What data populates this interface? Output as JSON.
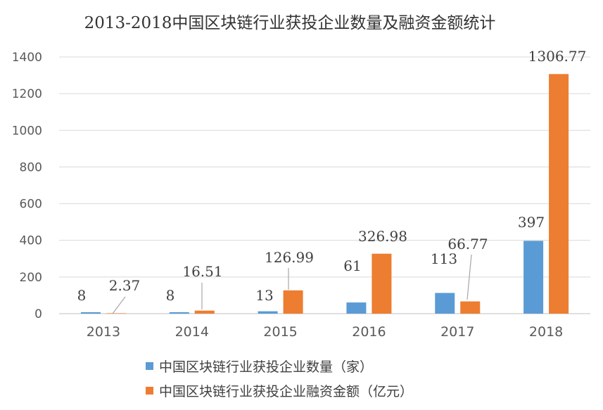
{
  "chart_data": {
    "type": "bar",
    "title": "2013-2018中国区块链行业获投企业数量及融资金额统计",
    "xlabel": "",
    "ylabel": "",
    "ylim": [
      0,
      1400
    ],
    "yticks": [
      "0",
      "200",
      "400",
      "600",
      "800",
      "1000",
      "1200",
      "1400"
    ],
    "categories": [
      "2013",
      "2014",
      "2015",
      "2016",
      "2017",
      "2018"
    ],
    "grid": true,
    "legend_position": "bottom",
    "series": [
      {
        "name": "中国区块链行业获投企业数量（家）",
        "color": "#5b9bd5",
        "values": [
          8,
          8,
          13,
          61,
          113,
          397
        ],
        "labels": [
          "8",
          "8",
          "13",
          "61",
          "113",
          "397"
        ]
      },
      {
        "name": "中国区块链行业获投企业融资金额（亿元）",
        "color": "#ed7d31",
        "values": [
          2.37,
          16.51,
          126.99,
          326.98,
          66.77,
          1306.77
        ],
        "labels": [
          "2.37",
          "16.51",
          "126.99",
          "326.98",
          "66.77",
          "1306.77"
        ]
      }
    ]
  }
}
